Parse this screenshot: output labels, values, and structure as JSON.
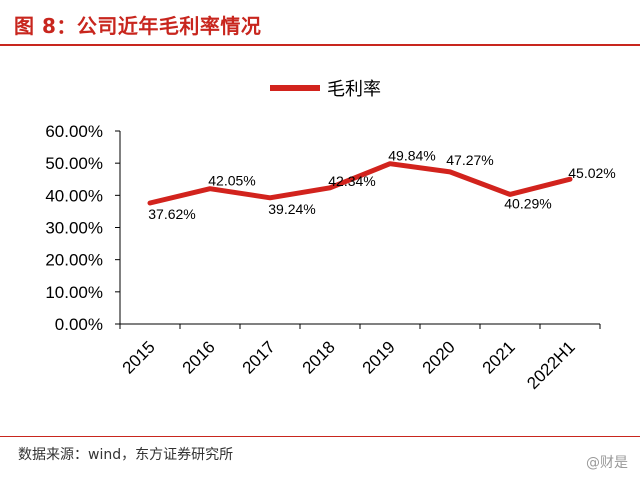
{
  "header": {
    "title": "图 8：公司近年毛利率情况"
  },
  "footer": {
    "source": "数据来源：wind，东方证券研究所",
    "watermark": "@财是"
  },
  "colors": {
    "accent": "#c8261e",
    "line": "#d2231d"
  },
  "chart_data": {
    "type": "line",
    "title": "",
    "xlabel": "",
    "ylabel": "",
    "categories": [
      "2015",
      "2016",
      "2017",
      "2018",
      "2019",
      "2020",
      "2021",
      "2022H1"
    ],
    "series": [
      {
        "name": "毛利率",
        "values": [
          37.62,
          42.05,
          39.24,
          42.34,
          49.84,
          47.27,
          40.29,
          45.02
        ],
        "labels": [
          "37.62%",
          "42.05%",
          "39.24%",
          "42.34%",
          "49.84%",
          "47.27%",
          "40.29%",
          "45.02%"
        ]
      }
    ],
    "ylim": [
      0,
      60
    ],
    "yticks": [
      "0.00%",
      "10.00%",
      "20.00%",
      "30.00%",
      "40.00%",
      "50.00%",
      "60.00%"
    ],
    "legend": "top-center",
    "grid": false
  }
}
